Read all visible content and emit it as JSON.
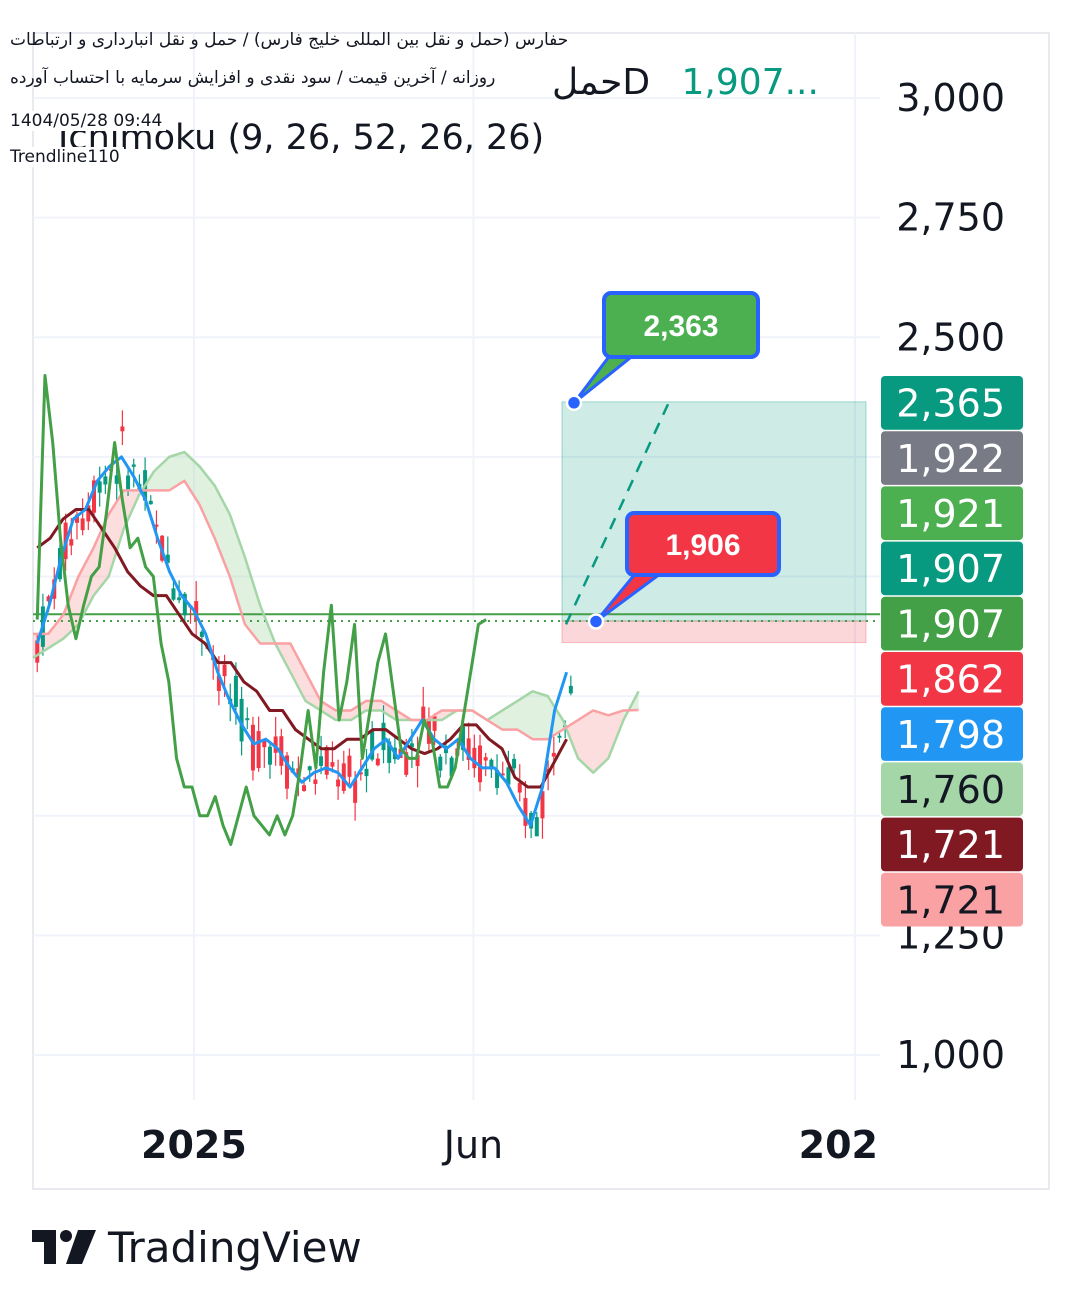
{
  "header": {
    "line1": "حفارس (حمل و نقل بین المللی خلیج فارس) / حمل و نقل انبارداری و ارتباطات",
    "line2": "روزانه / آخرین قیمت / سود نقدی و افزایش سرمایه با احتساب آورده",
    "timestamp": "1404/05/28 09:44",
    "drawing": "Trendline110",
    "symbol_label": "حملD",
    "last_price": "1,907...",
    "indicator": "Ichimoku (9, 26, 52, 26, 26)"
  },
  "branding": {
    "name": "TradingView"
  },
  "chart_data": {
    "type": "line",
    "subtype": "candlestick-with-ichimoku",
    "y_ticks": [
      1000,
      1250,
      1500,
      1750,
      2000,
      2250,
      2500,
      2750,
      3000
    ],
    "y_tick_labels": [
      "1,000",
      "1,250",
      "",
      "",
      "",
      "",
      "2,500",
      "2,750",
      "3,000"
    ],
    "ylim": [
      900,
      3120
    ],
    "x_labels": [
      {
        "label": "2025",
        "t": 0.19
      },
      {
        "label": "Jun",
        "t": 0.52
      },
      {
        "label": "202",
        "t": 0.97
      }
    ],
    "price_tags": [
      {
        "value": 2365,
        "label": "2,365",
        "color": "#089981"
      },
      {
        "value": 1922,
        "label": "1,922",
        "color": "#787b86"
      },
      {
        "value": 1921,
        "label": "1,921",
        "color": "#4caf50"
      },
      {
        "value": 1907,
        "label": "1,907",
        "color": "#089981"
      },
      {
        "value": 1907,
        "label": "1,907",
        "color": "#43a047"
      },
      {
        "value": 1862,
        "label": "1,862",
        "color": "#f23645"
      },
      {
        "value": 1798,
        "label": "1,798",
        "color": "#2196f3"
      },
      {
        "value": 1760,
        "label": "1,760",
        "color": "#a5d6a7"
      },
      {
        "value": 1721,
        "label": "1,721",
        "color": "#801922"
      },
      {
        "value": 1721,
        "label": "1,721",
        "color": "#faa1a4"
      }
    ],
    "callouts": [
      {
        "label": "2,363",
        "value": 2363,
        "color": "#4caf50"
      },
      {
        "label": "1,906",
        "value": 1906,
        "color": "#f23645"
      }
    ],
    "position": {
      "entry": 1907,
      "target": 2365,
      "stop": 1862
    },
    "colors": {
      "up": "#089981",
      "down": "#f23645",
      "tenkan": "#2196f3",
      "kijun": "#801922",
      "chikou": "#43a047",
      "span_a": "#a5d6a7",
      "span_b": "#faa1a4",
      "price_line": "#43a047"
    },
    "series": [
      {
        "name": "Chikou",
        "values": [
          1910,
          2420,
          2280,
          2080,
          1940,
          1870,
          1940,
          2000,
          2020,
          2140,
          2280,
          2160,
          2060,
          2080,
          2020,
          2000,
          1860,
          1780,
          1620,
          1560,
          1560,
          1500,
          1500,
          1540,
          1480,
          1440,
          1500,
          1560,
          1500,
          1480,
          1460,
          1500,
          1460,
          1500,
          1600,
          1720,
          1600,
          1800,
          1940,
          1700,
          1780,
          1900,
          1620,
          1720,
          1820,
          1880,
          1760,
          1640,
          1620,
          1620,
          1700,
          1660,
          1560,
          1560,
          1600,
          1700,
          1800,
          1900,
          1910
        ]
      },
      {
        "name": "Tenkan",
        "values": [
          1860,
          1940,
          2040,
          2120,
          2140,
          2200,
          2230,
          2250,
          2210,
          2160,
          2080,
          2010,
          1960,
          1930,
          1880,
          1800,
          1740,
          1690,
          1650,
          1660,
          1640,
          1600,
          1570,
          1590,
          1600,
          1590,
          1560,
          1600,
          1640,
          1660,
          1620,
          1660,
          1700,
          1660,
          1640,
          1660,
          1620,
          1600,
          1600,
          1570,
          1520,
          1480,
          1560,
          1720,
          1800
        ]
      },
      {
        "name": "Kijun",
        "values": [
          2060,
          2080,
          2120,
          2140,
          2140,
          2100,
          2060,
          2010,
          1980,
          1960,
          1960,
          1920,
          1880,
          1860,
          1820,
          1820,
          1780,
          1760,
          1720,
          1720,
          1680,
          1660,
          1640,
          1640,
          1660,
          1660,
          1680,
          1680,
          1660,
          1640,
          1630,
          1640,
          1660,
          1690,
          1690,
          1660,
          1640,
          1580,
          1560,
          1560,
          1610,
          1660
        ]
      },
      {
        "name": "Senkou A",
        "values": [
          1830,
          1850,
          1870,
          1900,
          1960,
          2000,
          2100,
          2170,
          2220,
          2250,
          2260,
          2230,
          2190,
          2130,
          2040,
          1940,
          1860,
          1800,
          1740,
          1720,
          1700,
          1700,
          1720,
          1720,
          1700,
          1700,
          1700,
          1700,
          1720,
          1720,
          1700,
          1720,
          1740,
          1760,
          1750,
          1700,
          1620,
          1590,
          1620,
          1700,
          1760
        ]
      },
      {
        "name": "Senkou B",
        "values": [
          1880,
          1880,
          1920,
          2000,
          2060,
          2130,
          2180,
          2180,
          2180,
          2180,
          2200,
          2150,
          2080,
          2000,
          1900,
          1860,
          1860,
          1860,
          1800,
          1740,
          1720,
          1720,
          1740,
          1740,
          1720,
          1700,
          1700,
          1720,
          1720,
          1720,
          1700,
          1680,
          1680,
          1660,
          1660,
          1680,
          1700,
          1720,
          1710,
          1720,
          1721
        ]
      }
    ]
  }
}
